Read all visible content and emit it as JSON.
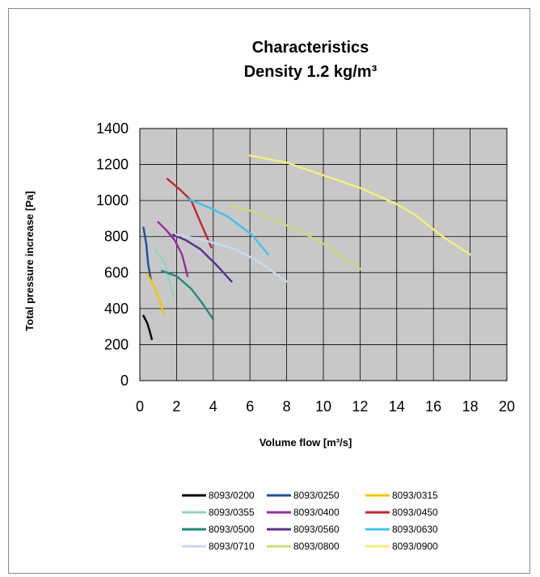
{
  "chart_data": {
    "type": "line",
    "title_lines": [
      "Characteristics",
      "Density 1.2 kg/m³"
    ],
    "xlabel": "Volume flow [m³/s]",
    "ylabel": "Total pressure increase [Pa]",
    "xlim": [
      0,
      20
    ],
    "ylim": [
      0,
      1400
    ],
    "xticks": [
      "0",
      "2",
      "4",
      "6",
      "8",
      "10",
      "12",
      "14",
      "16",
      "18",
      "20"
    ],
    "yticks": [
      "0",
      "200",
      "400",
      "600",
      "800",
      "1000",
      "1200",
      "1400"
    ],
    "grid": true,
    "plot_background": "#c8c8c8",
    "legend_position": "bottom",
    "series": [
      {
        "name": "8093/0200",
        "color": "#000000",
        "points": [
          [
            0.2,
            360
          ],
          [
            0.4,
            320
          ],
          [
            0.55,
            270
          ],
          [
            0.65,
            230
          ]
        ]
      },
      {
        "name": "8093/0250",
        "color": "#1f4e9c",
        "points": [
          [
            0.2,
            850
          ],
          [
            0.35,
            760
          ],
          [
            0.45,
            650
          ],
          [
            0.6,
            560
          ]
        ]
      },
      {
        "name": "8093/0315",
        "color": "#f5c400",
        "points": [
          [
            0.4,
            590
          ],
          [
            0.7,
            540
          ],
          [
            1.0,
            470
          ],
          [
            1.3,
            370
          ]
        ]
      },
      {
        "name": "8093/0355",
        "color": "#8fd3c8",
        "points": [
          [
            0.8,
            730
          ],
          [
            1.1,
            690
          ],
          [
            1.4,
            650
          ],
          [
            1.6,
            560
          ],
          [
            1.85,
            470
          ]
        ]
      },
      {
        "name": "8093/0400",
        "color": "#9b2a9b",
        "points": [
          [
            1.0,
            880
          ],
          [
            1.4,
            840
          ],
          [
            1.9,
            780
          ],
          [
            2.3,
            700
          ],
          [
            2.6,
            580
          ]
        ]
      },
      {
        "name": "8093/0450",
        "color": "#c0272d",
        "points": [
          [
            1.5,
            1120
          ],
          [
            2.2,
            1060
          ],
          [
            2.8,
            1000
          ],
          [
            3.3,
            880
          ],
          [
            3.9,
            740
          ]
        ]
      },
      {
        "name": "8093/0500",
        "color": "#1f8a7a",
        "points": [
          [
            1.2,
            610
          ],
          [
            2.0,
            580
          ],
          [
            2.8,
            510
          ],
          [
            3.4,
            430
          ],
          [
            4.0,
            340
          ]
        ]
      },
      {
        "name": "8093/0560",
        "color": "#5a2d91",
        "points": [
          [
            1.8,
            810
          ],
          [
            2.5,
            780
          ],
          [
            3.3,
            730
          ],
          [
            4.2,
            640
          ],
          [
            5.0,
            550
          ]
        ]
      },
      {
        "name": "8093/0630",
        "color": "#3fc3ee",
        "points": [
          [
            2.6,
            1010
          ],
          [
            3.8,
            960
          ],
          [
            4.8,
            910
          ],
          [
            6.1,
            810
          ],
          [
            7.0,
            700
          ]
        ]
      },
      {
        "name": "8093/0710",
        "color": "#c9d8ef",
        "points": [
          [
            2.0,
            810
          ],
          [
            3.5,
            780
          ],
          [
            5.2,
            730
          ],
          [
            6.5,
            660
          ],
          [
            8.0,
            550
          ]
        ]
      },
      {
        "name": "8093/0800",
        "color": "#c9dc7a",
        "points": [
          [
            5.0,
            970
          ],
          [
            6.5,
            930
          ],
          [
            8.5,
            840
          ],
          [
            10.0,
            760
          ],
          [
            12.0,
            620
          ]
        ]
      },
      {
        "name": "8093/0900",
        "color": "#f5ef7a",
        "points": [
          [
            6.0,
            1250
          ],
          [
            8.0,
            1210
          ],
          [
            10.0,
            1140
          ],
          [
            12.0,
            1070
          ],
          [
            14.0,
            980
          ],
          [
            15.0,
            920
          ],
          [
            16.5,
            800
          ],
          [
            18.0,
            700
          ]
        ]
      }
    ]
  }
}
